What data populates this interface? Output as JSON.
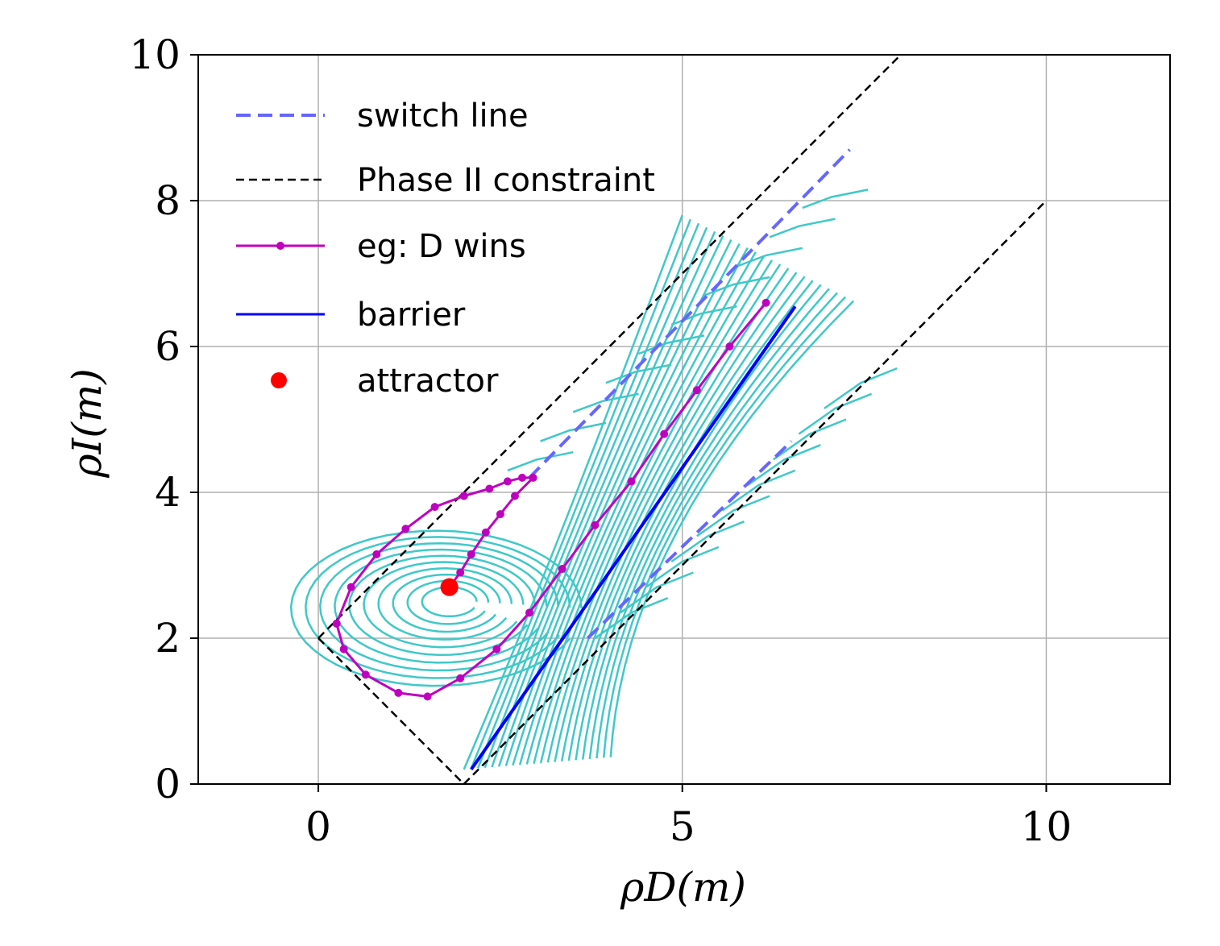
{
  "chart_data": {
    "type": "line",
    "xlabel": "ρD(m)",
    "ylabel": "ρI(m)",
    "xlim": [
      -1.65,
      11.7
    ],
    "ylim": [
      0,
      10
    ],
    "xticks": [
      0,
      5,
      10
    ],
    "yticks": [
      0,
      2,
      4,
      6,
      8,
      10
    ],
    "xtick_labels": [
      "0",
      "5",
      "10"
    ],
    "ytick_labels": [
      "0",
      "2",
      "4",
      "6",
      "8",
      "10"
    ],
    "grid": true,
    "legend_position": "upper-left",
    "legend": [
      {
        "label": "switch line",
        "style": "dashed",
        "color": "#6666ff"
      },
      {
        "label": "Phase II constraint",
        "style": "dashed",
        "color": "#000000"
      },
      {
        "label": "eg: D wins",
        "style": "line-with-markers",
        "color": "#bf00bf"
      },
      {
        "label": "barrier",
        "style": "solid",
        "color": "#0000ff"
      },
      {
        "label": "attractor",
        "style": "marker",
        "color": "#ff0000"
      }
    ],
    "series": [
      {
        "name": "switch line",
        "color": "#6666ff",
        "dash": "dashed",
        "segments": [
          {
            "x": [
              2.9,
              7.3
            ],
            "y": [
              4.2,
              8.7
            ]
          },
          {
            "x": [
              3.7,
              6.5
            ],
            "y": [
              2.0,
              4.7
            ]
          }
        ]
      },
      {
        "name": "Phase II constraint",
        "color": "#000000",
        "dash": "dashed",
        "segments": [
          {
            "x": [
              0,
              8.0
            ],
            "y": [
              2,
              10
            ]
          },
          {
            "x": [
              0,
              2.0
            ],
            "y": [
              2,
              0
            ]
          },
          {
            "x": [
              2.0,
              10.0
            ],
            "y": [
              0,
              8
            ]
          }
        ]
      },
      {
        "name": "eg: D wins",
        "color": "#bf00bf",
        "x": [
          6.15,
          5.65,
          5.2,
          4.75,
          4.3,
          3.8,
          3.35,
          2.9,
          2.45,
          1.95,
          1.5,
          1.1,
          0.65,
          0.35,
          0.25,
          0.45,
          0.8,
          1.2,
          1.6,
          2.0,
          2.35,
          2.6,
          2.8,
          2.95,
          2.7,
          2.5,
          2.3,
          2.1,
          1.95,
          1.8
        ],
        "y": [
          6.6,
          6.0,
          5.4,
          4.8,
          4.15,
          3.55,
          2.95,
          2.35,
          1.85,
          1.45,
          1.2,
          1.25,
          1.5,
          1.85,
          2.2,
          2.7,
          3.15,
          3.5,
          3.8,
          3.95,
          4.05,
          4.15,
          4.2,
          4.2,
          3.95,
          3.7,
          3.45,
          3.15,
          2.9,
          2.7
        ]
      },
      {
        "name": "barrier",
        "color": "#0000ff",
        "x": [
          2.1,
          6.55
        ],
        "y": [
          0.2,
          6.55
        ]
      },
      {
        "name": "attractor",
        "color": "#ff0000",
        "x": [
          1.8
        ],
        "y": [
          2.7
        ]
      }
    ],
    "stream_color": "#40c8c8"
  }
}
